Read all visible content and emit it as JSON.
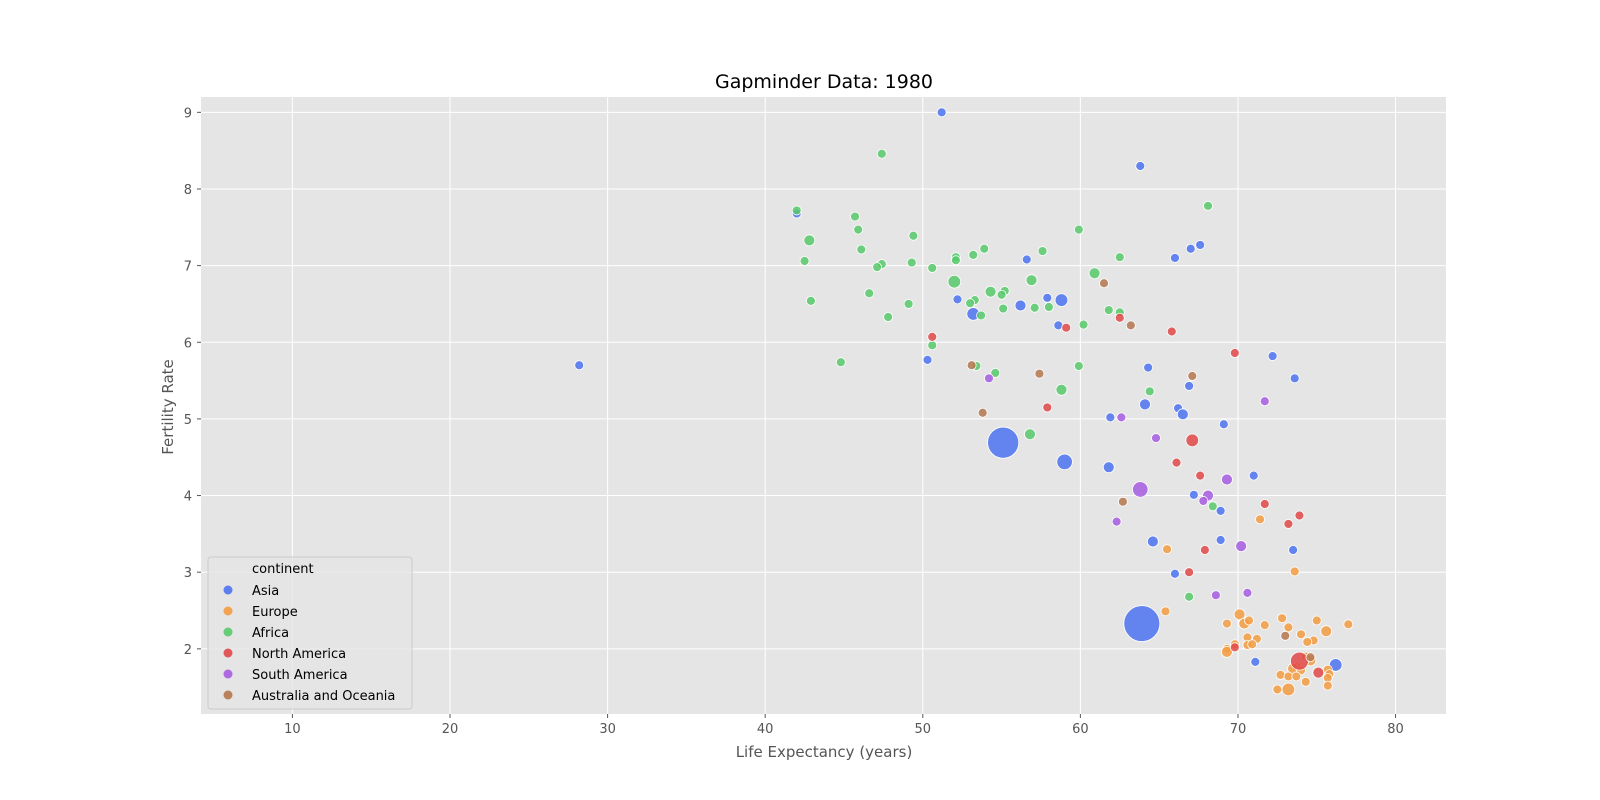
{
  "chart_data": {
    "type": "scatter",
    "title": "Gapminder Data: 1980",
    "xlabel": "Life Expectancy (years)",
    "ylabel": "Fertility Rate",
    "xlim": [
      4.2,
      83.2
    ],
    "ylim": [
      1.15,
      9.2
    ],
    "xticks": [
      10,
      20,
      30,
      40,
      50,
      60,
      70,
      80
    ],
    "yticks": [
      2,
      3,
      4,
      5,
      6,
      7,
      8,
      9
    ],
    "grid": true,
    "legend": {
      "title": "continent",
      "placement": "lower-left"
    },
    "size_encoding": "population",
    "series": [
      {
        "name": "Asia",
        "color": "#4c72f0",
        "points": [
          {
            "x": 51.2,
            "y": 9.0,
            "s": 1
          },
          {
            "x": 63.8,
            "y": 8.3,
            "s": 1
          },
          {
            "x": 42.0,
            "y": 7.68,
            "s": 1
          },
          {
            "x": 67.6,
            "y": 7.27,
            "s": 1
          },
          {
            "x": 67.0,
            "y": 7.22,
            "s": 1
          },
          {
            "x": 66.0,
            "y": 7.1,
            "s": 1
          },
          {
            "x": 56.6,
            "y": 7.08,
            "s": 1
          },
          {
            "x": 57.9,
            "y": 6.58,
            "s": 1
          },
          {
            "x": 58.8,
            "y": 6.55,
            "s": 2
          },
          {
            "x": 52.2,
            "y": 6.56,
            "s": 1
          },
          {
            "x": 56.2,
            "y": 6.48,
            "s": 1.5
          },
          {
            "x": 53.2,
            "y": 6.37,
            "s": 2
          },
          {
            "x": 58.6,
            "y": 6.22,
            "s": 1
          },
          {
            "x": 28.2,
            "y": 5.7,
            "s": 1
          },
          {
            "x": 50.3,
            "y": 5.77,
            "s": 1
          },
          {
            "x": 72.2,
            "y": 5.82,
            "s": 1
          },
          {
            "x": 64.3,
            "y": 5.67,
            "s": 1
          },
          {
            "x": 73.6,
            "y": 5.53,
            "s": 1
          },
          {
            "x": 66.9,
            "y": 5.43,
            "s": 1
          },
          {
            "x": 64.1,
            "y": 5.19,
            "s": 1.5
          },
          {
            "x": 66.2,
            "y": 5.14,
            "s": 1
          },
          {
            "x": 66.5,
            "y": 5.06,
            "s": 1.5
          },
          {
            "x": 61.9,
            "y": 5.02,
            "s": 1
          },
          {
            "x": 69.1,
            "y": 4.93,
            "s": 1
          },
          {
            "x": 55.1,
            "y": 4.69,
            "s": 12
          },
          {
            "x": 59.0,
            "y": 4.44,
            "s": 3
          },
          {
            "x": 61.8,
            "y": 4.37,
            "s": 1.5
          },
          {
            "x": 71.0,
            "y": 4.26,
            "s": 1
          },
          {
            "x": 67.2,
            "y": 4.01,
            "s": 1
          },
          {
            "x": 68.9,
            "y": 3.8,
            "s": 1
          },
          {
            "x": 64.6,
            "y": 3.4,
            "s": 1.5
          },
          {
            "x": 68.9,
            "y": 3.42,
            "s": 1
          },
          {
            "x": 73.5,
            "y": 3.29,
            "s": 1
          },
          {
            "x": 66.0,
            "y": 2.98,
            "s": 1
          },
          {
            "x": 63.9,
            "y": 2.33,
            "s": 16
          },
          {
            "x": 76.2,
            "y": 1.79,
            "s": 2
          },
          {
            "x": 71.1,
            "y": 1.83,
            "s": 1
          }
        ]
      },
      {
        "name": "Europe",
        "color": "#f39c42",
        "points": [
          {
            "x": 73.6,
            "y": 3.01,
            "s": 1
          },
          {
            "x": 71.4,
            "y": 3.69,
            "s": 1
          },
          {
            "x": 65.5,
            "y": 3.3,
            "s": 1
          },
          {
            "x": 65.4,
            "y": 2.49,
            "s": 1
          },
          {
            "x": 69.3,
            "y": 2.33,
            "s": 1
          },
          {
            "x": 70.1,
            "y": 2.45,
            "s": 1.5
          },
          {
            "x": 70.4,
            "y": 2.33,
            "s": 1.5
          },
          {
            "x": 70.7,
            "y": 2.37,
            "s": 1
          },
          {
            "x": 71.7,
            "y": 2.31,
            "s": 1
          },
          {
            "x": 72.8,
            "y": 2.4,
            "s": 1
          },
          {
            "x": 73.2,
            "y": 2.28,
            "s": 1
          },
          {
            "x": 74.0,
            "y": 2.19,
            "s": 1
          },
          {
            "x": 75.0,
            "y": 2.37,
            "s": 1
          },
          {
            "x": 75.6,
            "y": 2.23,
            "s": 1.5
          },
          {
            "x": 77.0,
            "y": 2.32,
            "s": 1
          },
          {
            "x": 74.8,
            "y": 2.11,
            "s": 1
          },
          {
            "x": 74.4,
            "y": 2.09,
            "s": 1
          },
          {
            "x": 71.2,
            "y": 2.13,
            "s": 1
          },
          {
            "x": 70.6,
            "y": 2.15,
            "s": 1
          },
          {
            "x": 70.6,
            "y": 2.05,
            "s": 1
          },
          {
            "x": 70.9,
            "y": 2.06,
            "s": 1
          },
          {
            "x": 69.8,
            "y": 2.06,
            "s": 1
          },
          {
            "x": 69.3,
            "y": 2.0,
            "s": 1
          },
          {
            "x": 69.3,
            "y": 1.96,
            "s": 1.5
          },
          {
            "x": 74.3,
            "y": 1.9,
            "s": 1
          },
          {
            "x": 74.6,
            "y": 1.85,
            "s": 1.5
          },
          {
            "x": 73.7,
            "y": 1.77,
            "s": 1
          },
          {
            "x": 73.5,
            "y": 1.74,
            "s": 1.5
          },
          {
            "x": 74.0,
            "y": 1.72,
            "s": 1
          },
          {
            "x": 75.7,
            "y": 1.73,
            "s": 1
          },
          {
            "x": 75.8,
            "y": 1.67,
            "s": 1
          },
          {
            "x": 75.7,
            "y": 1.62,
            "s": 1
          },
          {
            "x": 72.7,
            "y": 1.66,
            "s": 1
          },
          {
            "x": 73.2,
            "y": 1.64,
            "s": 1
          },
          {
            "x": 73.7,
            "y": 1.64,
            "s": 1
          },
          {
            "x": 74.3,
            "y": 1.57,
            "s": 1
          },
          {
            "x": 75.7,
            "y": 1.52,
            "s": 1
          },
          {
            "x": 72.5,
            "y": 1.47,
            "s": 1
          },
          {
            "x": 73.2,
            "y": 1.47,
            "s": 2
          }
        ]
      },
      {
        "name": "Africa",
        "color": "#57c96b",
        "points": [
          {
            "x": 47.4,
            "y": 8.46,
            "s": 1
          },
          {
            "x": 68.1,
            "y": 7.78,
            "s": 1
          },
          {
            "x": 42.0,
            "y": 7.72,
            "s": 1
          },
          {
            "x": 45.7,
            "y": 7.64,
            "s": 1
          },
          {
            "x": 45.9,
            "y": 7.47,
            "s": 1
          },
          {
            "x": 59.9,
            "y": 7.47,
            "s": 1
          },
          {
            "x": 49.4,
            "y": 7.39,
            "s": 1
          },
          {
            "x": 42.8,
            "y": 7.33,
            "s": 1.5
          },
          {
            "x": 53.9,
            "y": 7.22,
            "s": 1
          },
          {
            "x": 46.1,
            "y": 7.21,
            "s": 1
          },
          {
            "x": 57.6,
            "y": 7.19,
            "s": 1
          },
          {
            "x": 53.2,
            "y": 7.14,
            "s": 1
          },
          {
            "x": 52.1,
            "y": 7.11,
            "s": 1
          },
          {
            "x": 62.5,
            "y": 7.11,
            "s": 1
          },
          {
            "x": 52.1,
            "y": 7.07,
            "s": 1
          },
          {
            "x": 42.5,
            "y": 7.06,
            "s": 1
          },
          {
            "x": 49.3,
            "y": 7.04,
            "s": 1
          },
          {
            "x": 47.4,
            "y": 7.02,
            "s": 1
          },
          {
            "x": 47.1,
            "y": 6.98,
            "s": 1
          },
          {
            "x": 50.6,
            "y": 6.97,
            "s": 1
          },
          {
            "x": 60.9,
            "y": 6.9,
            "s": 1.5
          },
          {
            "x": 52.0,
            "y": 6.79,
            "s": 2
          },
          {
            "x": 56.9,
            "y": 6.81,
            "s": 1.5
          },
          {
            "x": 54.3,
            "y": 6.66,
            "s": 1.5
          },
          {
            "x": 55.2,
            "y": 6.67,
            "s": 1
          },
          {
            "x": 55.0,
            "y": 6.62,
            "s": 1
          },
          {
            "x": 46.6,
            "y": 6.64,
            "s": 1
          },
          {
            "x": 42.9,
            "y": 6.54,
            "s": 1
          },
          {
            "x": 53.3,
            "y": 6.55,
            "s": 1
          },
          {
            "x": 53.0,
            "y": 6.51,
            "s": 1
          },
          {
            "x": 49.1,
            "y": 6.5,
            "s": 1
          },
          {
            "x": 57.1,
            "y": 6.45,
            "s": 1
          },
          {
            "x": 58.0,
            "y": 6.46,
            "s": 1
          },
          {
            "x": 55.1,
            "y": 6.44,
            "s": 1
          },
          {
            "x": 61.8,
            "y": 6.42,
            "s": 1
          },
          {
            "x": 62.5,
            "y": 6.39,
            "s": 1
          },
          {
            "x": 53.7,
            "y": 6.35,
            "s": 1
          },
          {
            "x": 47.8,
            "y": 6.33,
            "s": 1
          },
          {
            "x": 60.2,
            "y": 6.23,
            "s": 1
          },
          {
            "x": 50.6,
            "y": 5.96,
            "s": 1
          },
          {
            "x": 44.8,
            "y": 5.74,
            "s": 1
          },
          {
            "x": 53.4,
            "y": 5.69,
            "s": 1
          },
          {
            "x": 59.9,
            "y": 5.69,
            "s": 1
          },
          {
            "x": 54.6,
            "y": 5.6,
            "s": 1
          },
          {
            "x": 58.8,
            "y": 5.38,
            "s": 1.5
          },
          {
            "x": 64.4,
            "y": 5.36,
            "s": 1
          },
          {
            "x": 56.8,
            "y": 4.8,
            "s": 1.5
          },
          {
            "x": 68.4,
            "y": 3.86,
            "s": 1
          },
          {
            "x": 66.9,
            "y": 2.68,
            "s": 1
          }
        ]
      },
      {
        "name": "North America",
        "color": "#e04848",
        "points": [
          {
            "x": 62.5,
            "y": 6.32,
            "s": 1
          },
          {
            "x": 59.1,
            "y": 6.19,
            "s": 1
          },
          {
            "x": 65.8,
            "y": 6.14,
            "s": 1
          },
          {
            "x": 50.6,
            "y": 6.07,
            "s": 1
          },
          {
            "x": 69.8,
            "y": 5.86,
            "s": 1
          },
          {
            "x": 57.9,
            "y": 5.15,
            "s": 1
          },
          {
            "x": 67.1,
            "y": 4.72,
            "s": 2
          },
          {
            "x": 66.1,
            "y": 4.43,
            "s": 1
          },
          {
            "x": 67.6,
            "y": 4.26,
            "s": 1
          },
          {
            "x": 71.7,
            "y": 3.89,
            "s": 1
          },
          {
            "x": 73.9,
            "y": 3.74,
            "s": 1
          },
          {
            "x": 73.2,
            "y": 3.63,
            "s": 1
          },
          {
            "x": 67.9,
            "y": 3.29,
            "s": 1
          },
          {
            "x": 66.9,
            "y": 3.0,
            "s": 1
          },
          {
            "x": 69.8,
            "y": 2.02,
            "s": 1
          },
          {
            "x": 73.9,
            "y": 1.84,
            "s": 4
          },
          {
            "x": 75.1,
            "y": 1.69,
            "s": 1.5
          }
        ]
      },
      {
        "name": "South America",
        "color": "#a65ce0",
        "points": [
          {
            "x": 54.2,
            "y": 5.53,
            "s": 1
          },
          {
            "x": 71.7,
            "y": 5.23,
            "s": 1
          },
          {
            "x": 62.6,
            "y": 5.02,
            "s": 1
          },
          {
            "x": 64.8,
            "y": 4.75,
            "s": 1
          },
          {
            "x": 69.3,
            "y": 4.21,
            "s": 1.5
          },
          {
            "x": 63.8,
            "y": 4.08,
            "s": 3
          },
          {
            "x": 68.1,
            "y": 4.0,
            "s": 1.5
          },
          {
            "x": 67.8,
            "y": 3.93,
            "s": 1
          },
          {
            "x": 62.3,
            "y": 3.66,
            "s": 1
          },
          {
            "x": 70.2,
            "y": 3.34,
            "s": 1.5
          },
          {
            "x": 70.6,
            "y": 2.73,
            "s": 1
          },
          {
            "x": 68.6,
            "y": 2.7,
            "s": 1
          }
        ]
      },
      {
        "name": "Australia and Oceania",
        "color": "#b5774d",
        "points": [
          {
            "x": 61.5,
            "y": 6.77,
            "s": 1
          },
          {
            "x": 63.2,
            "y": 6.22,
            "s": 1
          },
          {
            "x": 53.1,
            "y": 5.7,
            "s": 1
          },
          {
            "x": 57.4,
            "y": 5.59,
            "s": 1
          },
          {
            "x": 67.1,
            "y": 5.56,
            "s": 1
          },
          {
            "x": 53.8,
            "y": 5.08,
            "s": 1
          },
          {
            "x": 62.7,
            "y": 3.92,
            "s": 1
          },
          {
            "x": 73.0,
            "y": 2.17,
            "s": 1
          },
          {
            "x": 74.6,
            "y": 1.89,
            "s": 1
          }
        ]
      }
    ]
  }
}
